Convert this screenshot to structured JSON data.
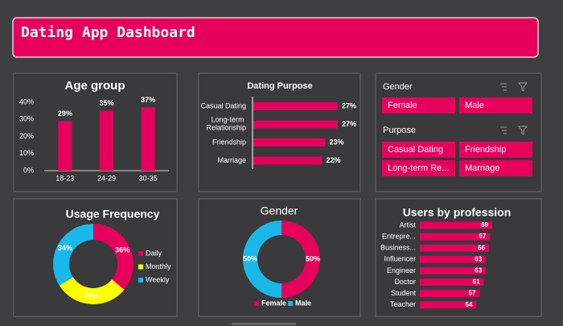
{
  "header": {
    "title": "Dating App Dashboard"
  },
  "chart_data": [
    {
      "type": "bar",
      "title": "Age group",
      "color": "#e6005c",
      "categories": [
        "18-23",
        "24-29",
        "30-35"
      ],
      "values": [
        29,
        35,
        37
      ],
      "value_labels": [
        "29%",
        "35%",
        "37%"
      ],
      "ylim": [
        0,
        40
      ],
      "yticks": [
        {
          "value": 0,
          "label": "0%"
        },
        {
          "value": 10,
          "label": "10%"
        },
        {
          "value": 20,
          "label": "20%"
        },
        {
          "value": 30,
          "label": "30%"
        },
        {
          "value": 40,
          "label": "40%"
        }
      ]
    },
    {
      "type": "hbar",
      "title": "Dating Purpose",
      "color": "#e6005c",
      "categories": [
        "Casual Dating",
        "Long-term Relationship",
        "Friendship",
        "Marriage"
      ],
      "values": [
        27,
        27,
        23,
        22
      ],
      "value_labels": [
        "27%",
        "27%",
        "23%",
        "22%"
      ]
    },
    {
      "type": "donut",
      "title": "Usage Frequency",
      "categories": [
        "Daily",
        "Monthly",
        "Weekly"
      ],
      "values": [
        36,
        30,
        34
      ],
      "value_labels": [
        "36%",
        "30%",
        "34%"
      ],
      "colors": [
        "#e6005c",
        "#ffff00",
        "#1ab8e8"
      ]
    },
    {
      "type": "donut",
      "title": "Gender",
      "categories": [
        "Female",
        "Male"
      ],
      "values": [
        50,
        50
      ],
      "value_labels": [
        "50%",
        "50%"
      ],
      "colors": [
        "#e6005c",
        "#1ab8e8"
      ]
    },
    {
      "type": "hbar",
      "title": "Users by profession",
      "color": "#e6005c",
      "categories": [
        "Artist",
        "Entrepre...",
        "Business...",
        "Influencer",
        "Engineer",
        "Doctor",
        "Student",
        "Teacher"
      ],
      "values": [
        69,
        67,
        66,
        63,
        63,
        61,
        57,
        54
      ]
    }
  ],
  "slicers": [
    {
      "title": "Gender",
      "items": [
        "Female",
        "Male"
      ]
    },
    {
      "title": "Purpose",
      "items": [
        "Casual Dating",
        "Friendship",
        "Long-term Re...",
        "Marriage"
      ]
    }
  ]
}
